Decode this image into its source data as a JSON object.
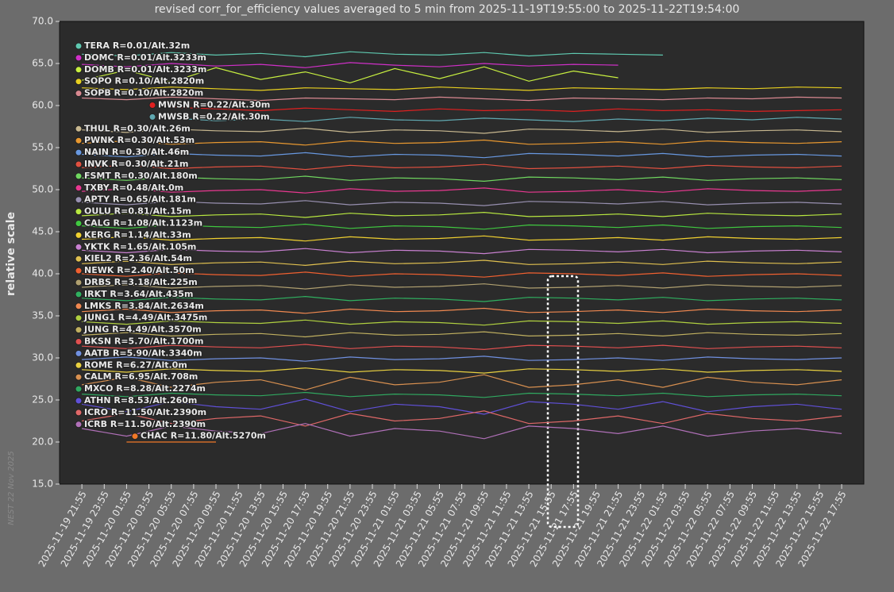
{
  "chart_data": {
    "type": "line",
    "title": "revised corr_for_efficiency values averaged to 5 min from 2025-11-19T19:55:00 to 2025-11-22T19:54:00",
    "ylabel": "relative scale",
    "watermark": "NEST   22 Nov 2025",
    "xlim": [
      "2025-11-19 19:55",
      "2025-11-22 19:54"
    ],
    "ylim": [
      15,
      70
    ],
    "yticks": [
      {
        "value": 15,
        "label": "15.0"
      },
      {
        "value": 20,
        "label": "20.0"
      },
      {
        "value": 25,
        "label": "25.0"
      },
      {
        "value": 30,
        "label": "30.0"
      },
      {
        "value": 35,
        "label": "35.0"
      },
      {
        "value": 40,
        "label": "40.0"
      },
      {
        "value": 45,
        "label": "45.0"
      },
      {
        "value": 50,
        "label": "50.0"
      },
      {
        "value": 55,
        "label": "55.0"
      },
      {
        "value": 60,
        "label": "60.0"
      },
      {
        "value": 65,
        "label": "65.0"
      },
      {
        "value": 70,
        "label": "70.0"
      }
    ],
    "xticks": [
      "2025-11-19 21:55",
      "2025-11-19 23:55",
      "2025-11-20 01:55",
      "2025-11-20 03:55",
      "2025-11-20 05:55",
      "2025-11-20 07:55",
      "2025-11-20 09:55",
      "2025-11-20 11:55",
      "2025-11-20 13:55",
      "2025-11-20 15:55",
      "2025-11-20 17:55",
      "2025-11-20 19:55",
      "2025-11-20 21:55",
      "2025-11-20 23:55",
      "2025-11-21 01:55",
      "2025-11-21 03:55",
      "2025-11-21 05:55",
      "2025-11-21 07:55",
      "2025-11-21 09:55",
      "2025-11-21 11:55",
      "2025-11-21 13:55",
      "2025-11-21 15:55",
      "2025-11-21 17:55",
      "2025-11-21 19:55",
      "2025-11-21 21:55",
      "2025-11-21 23:55",
      "2025-11-22 01:55",
      "2025-11-22 03:55",
      "2025-11-22 05:55",
      "2025-11-22 07:55",
      "2025-11-22 09:55",
      "2025-11-22 11:55",
      "2025-11-22 13:55",
      "2025-11-22 15:55",
      "2025-11-22 17:55"
    ],
    "x": [
      "2025-11-19 21:55",
      "2025-11-20 01:55",
      "2025-11-20 05:55",
      "2025-11-20 09:55",
      "2025-11-20 13:55",
      "2025-11-20 17:55",
      "2025-11-20 21:55",
      "2025-11-21 01:55",
      "2025-11-21 05:55",
      "2025-11-21 09:55",
      "2025-11-21 13:55",
      "2025-11-21 17:55",
      "2025-11-21 21:55",
      "2025-11-22 01:55",
      "2025-11-22 05:55",
      "2025-11-22 09:55",
      "2025-11-22 13:55",
      "2025-11-22 17:55"
    ],
    "series": [
      {
        "name": "TERA R=0.01/Alt.32m",
        "color": "#5fc9b0",
        "values": [
          66.1,
          65.9,
          66.3,
          66.0,
          66.2,
          65.8,
          66.4,
          66.1,
          66.0,
          66.3,
          65.9,
          66.2,
          66.1,
          66.0,
          null,
          null,
          null,
          null
        ]
      },
      {
        "name": "DOMC R=0.01/Alt.3233m",
        "color": "#d030c8",
        "values": [
          64.9,
          64.6,
          65.0,
          64.7,
          64.9,
          64.5,
          65.1,
          64.8,
          64.6,
          65.0,
          64.7,
          64.9,
          64.8,
          null,
          null,
          null,
          null,
          null
        ]
      },
      {
        "name": "DOMB R=0.01/Alt.3233m",
        "color": "#c8f040",
        "values": [
          63.0,
          64.2,
          62.8,
          64.5,
          63.1,
          64.0,
          62.7,
          64.4,
          63.2,
          64.6,
          62.9,
          64.1,
          63.3,
          null,
          null,
          null,
          null,
          null
        ]
      },
      {
        "name": "SOPO R=0.10/Alt.2820m",
        "color": "#e8d020",
        "values": [
          62.1,
          61.9,
          62.2,
          62.0,
          61.8,
          62.1,
          62.0,
          61.9,
          62.2,
          62.0,
          61.8,
          62.1,
          62.0,
          61.9,
          62.1,
          62.0,
          62.2,
          62.1
        ]
      },
      {
        "name": "SOPB R=0.10/Alt.2820m",
        "color": "#d88890",
        "values": [
          60.9,
          60.7,
          61.0,
          60.8,
          60.6,
          60.9,
          60.8,
          60.7,
          61.0,
          60.8,
          60.6,
          60.9,
          60.8,
          60.7,
          60.9,
          60.8,
          61.0,
          60.9
        ]
      },
      {
        "name": "MWSN R=0.22/Alt.30m",
        "color": "#e02020",
        "values": [
          null,
          null,
          59.8,
          59.6,
          59.4,
          59.7,
          59.5,
          59.3,
          59.6,
          59.4,
          59.5,
          59.3,
          59.6,
          59.4,
          59.5,
          59.3,
          59.4,
          59.5
        ]
      },
      {
        "name": "MWSB R=0.22/Alt.30m",
        "color": "#60a8b0",
        "values": [
          null,
          null,
          58.5,
          58.2,
          58.4,
          58.1,
          58.6,
          58.3,
          58.2,
          58.5,
          58.3,
          58.1,
          58.4,
          58.2,
          58.5,
          58.3,
          58.6,
          58.4
        ]
      },
      {
        "name": "THUL R=0.30/Alt.26m",
        "color": "#c8b890",
        "values": [
          57.1,
          56.8,
          57.2,
          57.0,
          56.9,
          57.3,
          56.8,
          57.1,
          57.0,
          56.7,
          57.2,
          57.1,
          56.9,
          57.2,
          56.8,
          57.0,
          57.1,
          56.9
        ]
      },
      {
        "name": "PWNK R=0.30/Alt.53m",
        "color": "#e89830",
        "values": [
          55.5,
          55.8,
          55.4,
          55.6,
          55.7,
          55.3,
          55.8,
          55.5,
          55.6,
          55.9,
          55.4,
          55.5,
          55.7,
          55.4,
          55.8,
          55.6,
          55.5,
          55.7
        ]
      },
      {
        "name": "NAIN R=0.30/Alt.46m",
        "color": "#6898e0",
        "values": [
          54.2,
          53.9,
          54.3,
          54.1,
          54.0,
          54.4,
          53.9,
          54.2,
          54.1,
          53.8,
          54.3,
          54.2,
          54.0,
          54.3,
          53.9,
          54.1,
          54.2,
          54.0
        ]
      },
      {
        "name": "INVK R=0.30/Alt.21m",
        "color": "#e05040",
        "values": [
          52.6,
          52.9,
          52.5,
          52.7,
          52.8,
          52.4,
          52.9,
          52.6,
          52.7,
          53.0,
          52.5,
          52.6,
          52.8,
          52.5,
          52.9,
          52.7,
          52.6,
          52.8
        ]
      },
      {
        "name": "FSMT R=0.30/Alt.180m",
        "color": "#70d860",
        "values": [
          51.4,
          51.1,
          51.5,
          51.3,
          51.2,
          51.6,
          51.1,
          51.4,
          51.3,
          51.0,
          51.5,
          51.4,
          51.2,
          51.5,
          51.1,
          51.3,
          51.4,
          51.2
        ]
      },
      {
        "name": "TXBY R=0.48/Alt.0m",
        "color": "#e83890",
        "values": [
          49.8,
          50.1,
          49.7,
          49.9,
          50.0,
          49.6,
          50.1,
          49.8,
          49.9,
          50.2,
          49.7,
          49.8,
          50.0,
          49.7,
          50.1,
          49.9,
          49.8,
          50.0
        ]
      },
      {
        "name": "APTY R=0.65/Alt.181m",
        "color": "#9890b0",
        "values": [
          48.5,
          48.2,
          48.6,
          48.4,
          48.3,
          48.7,
          48.2,
          48.5,
          48.4,
          48.1,
          48.6,
          48.5,
          48.3,
          48.6,
          48.2,
          48.4,
          48.5,
          48.3
        ]
      },
      {
        "name": "OULU R=0.81/Alt.15m",
        "color": "#b8e840",
        "values": [
          46.9,
          47.2,
          46.8,
          47.0,
          47.1,
          46.7,
          47.2,
          46.9,
          47.0,
          47.3,
          46.8,
          46.9,
          47.1,
          46.8,
          47.2,
          47.0,
          46.9,
          47.1
        ]
      },
      {
        "name": "CALG R=1.08/Alt.1123m",
        "color": "#40c840",
        "values": [
          45.7,
          45.4,
          45.8,
          45.6,
          45.5,
          45.9,
          45.4,
          45.7,
          45.6,
          45.3,
          45.8,
          45.7,
          45.5,
          45.8,
          45.4,
          45.6,
          45.7,
          45.5
        ]
      },
      {
        "name": "KERG R=1.14/Alt.33m",
        "color": "#f0d030",
        "values": [
          44.1,
          44.4,
          44.0,
          44.2,
          44.3,
          43.9,
          44.4,
          44.1,
          44.2,
          44.5,
          44.0,
          44.1,
          44.3,
          44.0,
          44.4,
          44.2,
          44.1,
          44.3
        ]
      },
      {
        "name": "YKTK R=1.65/Alt.105m",
        "color": "#c880d0",
        "values": [
          42.8,
          42.5,
          42.9,
          42.7,
          42.6,
          43.0,
          42.5,
          42.8,
          42.7,
          42.4,
          42.9,
          42.8,
          42.6,
          42.9,
          42.5,
          42.7,
          42.8,
          42.6
        ]
      },
      {
        "name": "KIEL2 R=2.36/Alt.54m",
        "color": "#e0c050",
        "values": [
          41.2,
          41.5,
          41.1,
          41.3,
          41.4,
          41.0,
          41.5,
          41.2,
          41.3,
          41.6,
          41.1,
          41.2,
          41.4,
          41.1,
          41.5,
          41.3,
          41.2,
          41.4
        ]
      },
      {
        "name": "NEWK R=2.40/Alt.50m",
        "color": "#f06030",
        "values": [
          40.0,
          39.7,
          40.1,
          39.9,
          39.8,
          40.2,
          39.7,
          40.0,
          39.9,
          39.6,
          40.1,
          40.0,
          39.8,
          40.1,
          39.7,
          39.9,
          40.0,
          39.8
        ]
      },
      {
        "name": "DRBS R=3.18/Alt.225m",
        "color": "#b0a070",
        "values": [
          38.4,
          38.7,
          38.3,
          38.5,
          38.6,
          38.2,
          38.7,
          38.4,
          38.5,
          38.8,
          38.3,
          38.4,
          38.6,
          38.3,
          38.7,
          38.5,
          38.4,
          38.6
        ]
      },
      {
        "name": "IRKT R=3.64/Alt.435m",
        "color": "#30b060",
        "values": [
          37.1,
          36.8,
          37.2,
          37.0,
          36.9,
          37.3,
          36.8,
          37.1,
          37.0,
          36.7,
          37.2,
          37.1,
          36.9,
          37.2,
          36.8,
          37.0,
          37.1,
          36.9
        ]
      },
      {
        "name": "LMKS R=3.84/Alt.2634m",
        "color": "#f08850",
        "values": [
          35.5,
          35.8,
          35.4,
          35.6,
          35.7,
          35.3,
          35.8,
          35.5,
          35.6,
          35.9,
          35.4,
          35.5,
          35.7,
          35.4,
          35.8,
          35.6,
          35.5,
          35.7
        ]
      },
      {
        "name": "JUNG1 R=4.49/Alt.3475m",
        "color": "#b0d040",
        "values": [
          34.3,
          34.0,
          34.4,
          34.2,
          34.1,
          34.5,
          34.0,
          34.3,
          34.2,
          33.9,
          34.4,
          34.3,
          34.1,
          34.4,
          34.0,
          34.2,
          34.3,
          34.1
        ]
      },
      {
        "name": "JUNG R=4.49/Alt.3570m",
        "color": "#c0b060",
        "values": [
          32.7,
          33.0,
          32.6,
          32.8,
          32.9,
          32.5,
          33.0,
          32.7,
          32.8,
          33.1,
          32.6,
          32.7,
          32.9,
          32.6,
          33.0,
          32.8,
          32.7,
          32.9
        ]
      },
      {
        "name": "BKSN R=5.70/Alt.1700m",
        "color": "#e05050",
        "values": [
          31.4,
          31.1,
          31.5,
          31.3,
          31.2,
          31.6,
          31.1,
          31.4,
          31.3,
          31.0,
          31.5,
          31.4,
          31.2,
          31.5,
          31.1,
          31.3,
          31.4,
          31.2
        ]
      },
      {
        "name": "AATB R=5.90/Alt.3340m",
        "color": "#7090e0",
        "values": [
          29.8,
          30.1,
          29.7,
          29.9,
          30.0,
          29.6,
          30.1,
          29.8,
          29.9,
          30.2,
          29.7,
          29.8,
          30.0,
          29.7,
          30.1,
          29.9,
          29.8,
          30.0
        ]
      },
      {
        "name": "ROME R=6.27/Alt.0m",
        "color": "#e8d040",
        "values": [
          28.6,
          28.3,
          28.7,
          28.5,
          28.4,
          28.8,
          28.3,
          28.6,
          28.5,
          28.2,
          28.7,
          28.6,
          28.4,
          28.7,
          28.3,
          28.5,
          28.6,
          28.4
        ]
      },
      {
        "name": "CALM R=6.95/Alt.708m",
        "color": "#d89050",
        "values": [
          26.8,
          27.7,
          26.5,
          27.1,
          27.4,
          26.2,
          27.7,
          26.8,
          27.1,
          28.0,
          26.5,
          26.8,
          27.4,
          26.5,
          27.7,
          27.1,
          26.8,
          27.4
        ]
      },
      {
        "name": "MXCO R=8.28/Alt.2274m",
        "color": "#30a860",
        "values": [
          25.7,
          25.4,
          25.8,
          25.6,
          25.5,
          25.9,
          25.4,
          25.7,
          25.6,
          25.3,
          25.8,
          25.7,
          25.5,
          25.8,
          25.4,
          25.6,
          25.7,
          25.5
        ]
      },
      {
        "name": "ATHN R=8.53/Alt.260m",
        "color": "#6050d8",
        "values": [
          24.5,
          23.6,
          24.8,
          24.2,
          23.9,
          25.1,
          23.6,
          24.5,
          24.2,
          23.3,
          24.8,
          24.5,
          23.9,
          24.8,
          23.6,
          24.2,
          24.5,
          23.9
        ]
      },
      {
        "name": "ICRO R=11.50/Alt.2390m",
        "color": "#e06868",
        "values": [
          22.5,
          23.4,
          22.2,
          22.8,
          23.1,
          21.9,
          23.4,
          22.5,
          22.8,
          23.7,
          22.2,
          22.5,
          23.1,
          22.2,
          23.4,
          22.8,
          22.5,
          23.1
        ]
      },
      {
        "name": "ICRB R=11.50/Alt.2390m",
        "color": "#b070b8",
        "values": [
          21.6,
          20.7,
          21.9,
          21.3,
          21.0,
          22.2,
          20.7,
          21.6,
          21.3,
          20.4,
          21.9,
          21.6,
          21.0,
          21.9,
          20.7,
          21.3,
          21.6,
          21.0
        ]
      },
      {
        "name": "CHAC R=11.80/Alt.5270m",
        "color": "#f07828",
        "values": [
          null,
          20.0,
          20.0,
          20.0,
          null,
          null,
          null,
          null,
          null,
          null,
          null,
          null,
          null,
          null,
          null,
          null,
          null,
          null
        ]
      }
    ]
  }
}
